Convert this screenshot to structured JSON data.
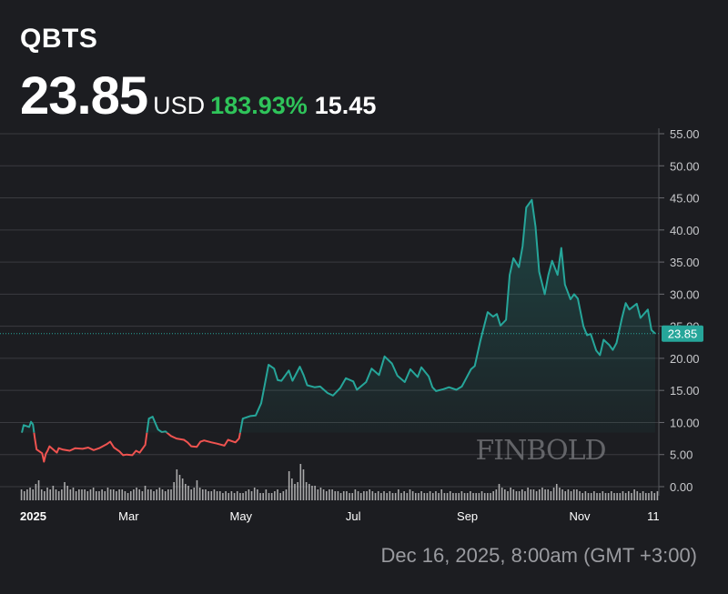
{
  "header": {
    "ticker": "QBTS",
    "price": "23.85",
    "currency": "USD",
    "change_percent": "183.93%",
    "change_value": "15.45"
  },
  "colors": {
    "background": "#1c1d21",
    "up_line": "#26a69a",
    "down_line": "#ef5350",
    "change_positive": "#2fc45a",
    "price_badge": "#26a69a",
    "volume": "#d8d8d8"
  },
  "watermark": "FINBOLD",
  "footer": {
    "timestamp": "Dec 16, 2025, 8:00am (GMT +3:00)"
  },
  "chart_data": {
    "type": "line",
    "title": "",
    "xlabel": "",
    "ylabel": "",
    "ylim": [
      0,
      55
    ],
    "y_ticks": [
      "0.00",
      "5.00",
      "10.00",
      "15.00",
      "20.00",
      "25.00",
      "30.00",
      "35.00",
      "40.00",
      "45.00",
      "50.00",
      "55.00"
    ],
    "x_ticks": [
      "2025",
      "Mar",
      "May",
      "Jul",
      "Sep",
      "Nov",
      "11"
    ],
    "x_tick_dates": [
      "2025-01-01",
      "2025-03-01",
      "2025-05-01",
      "2025-07-01",
      "2025-09-01",
      "2025-11-01",
      "2025-12-11"
    ],
    "last_price_label": "23.85",
    "grid": true,
    "baseline": 8.4,
    "series": [
      {
        "points": [
          [
            "2025-01-02",
            8.4
          ],
          [
            "2025-01-03",
            9.6
          ],
          [
            "2025-01-06",
            9.3
          ],
          [
            "2025-01-07",
            10.1
          ],
          [
            "2025-01-08",
            9.7
          ],
          [
            "2025-01-09",
            7.6
          ],
          [
            "2025-01-10",
            5.8
          ],
          [
            "2025-01-13",
            5.2
          ],
          [
            "2025-01-14",
            3.9
          ],
          [
            "2025-01-15",
            5.1
          ],
          [
            "2025-01-16",
            5.6
          ],
          [
            "2025-01-17",
            6.3
          ],
          [
            "2025-01-21",
            5.3
          ],
          [
            "2025-01-22",
            6.0
          ],
          [
            "2025-01-24",
            5.8
          ],
          [
            "2025-01-28",
            5.6
          ],
          [
            "2025-01-31",
            6.0
          ],
          [
            "2025-02-04",
            5.9
          ],
          [
            "2025-02-07",
            6.1
          ],
          [
            "2025-02-10",
            5.7
          ],
          [
            "2025-02-13",
            6.0
          ],
          [
            "2025-02-17",
            6.6
          ],
          [
            "2025-02-19",
            7.0
          ],
          [
            "2025-02-21",
            6.1
          ],
          [
            "2025-02-24",
            5.5
          ],
          [
            "2025-02-26",
            4.9
          ],
          [
            "2025-02-28",
            5.0
          ],
          [
            "2025-03-03",
            4.9
          ],
          [
            "2025-03-05",
            5.6
          ],
          [
            "2025-03-07",
            5.3
          ],
          [
            "2025-03-10",
            6.5
          ],
          [
            "2025-03-12",
            10.6
          ],
          [
            "2025-03-14",
            10.9
          ],
          [
            "2025-03-17",
            8.9
          ],
          [
            "2025-03-19",
            8.5
          ],
          [
            "2025-03-21",
            8.6
          ],
          [
            "2025-03-24",
            7.9
          ],
          [
            "2025-03-27",
            7.5
          ],
          [
            "2025-03-31",
            7.3
          ],
          [
            "2025-04-02",
            6.9
          ],
          [
            "2025-04-04",
            6.3
          ],
          [
            "2025-04-07",
            6.2
          ],
          [
            "2025-04-09",
            7.0
          ],
          [
            "2025-04-11",
            7.2
          ],
          [
            "2025-04-15",
            6.9
          ],
          [
            "2025-04-18",
            6.7
          ],
          [
            "2025-04-22",
            6.4
          ],
          [
            "2025-04-24",
            7.3
          ],
          [
            "2025-04-28",
            6.9
          ],
          [
            "2025-04-30",
            7.5
          ],
          [
            "2025-05-02",
            10.6
          ],
          [
            "2025-05-06",
            11.0
          ],
          [
            "2025-05-09",
            11.1
          ],
          [
            "2025-05-12",
            13.0
          ],
          [
            "2025-05-14",
            16.0
          ],
          [
            "2025-05-16",
            19.0
          ],
          [
            "2025-05-19",
            18.4
          ],
          [
            "2025-05-21",
            16.6
          ],
          [
            "2025-05-23",
            16.5
          ],
          [
            "2025-05-27",
            18.1
          ],
          [
            "2025-05-29",
            16.5
          ],
          [
            "2025-06-02",
            18.7
          ],
          [
            "2025-06-04",
            17.4
          ],
          [
            "2025-06-06",
            15.8
          ],
          [
            "2025-06-10",
            15.5
          ],
          [
            "2025-06-13",
            15.6
          ],
          [
            "2025-06-17",
            14.6
          ],
          [
            "2025-06-20",
            14.2
          ],
          [
            "2025-06-24",
            15.4
          ],
          [
            "2025-06-27",
            16.9
          ],
          [
            "2025-07-01",
            16.4
          ],
          [
            "2025-07-03",
            15.1
          ],
          [
            "2025-07-08",
            16.3
          ],
          [
            "2025-07-11",
            18.4
          ],
          [
            "2025-07-15",
            17.4
          ],
          [
            "2025-07-18",
            20.3
          ],
          [
            "2025-07-22",
            19.2
          ],
          [
            "2025-07-25",
            17.3
          ],
          [
            "2025-07-29",
            16.3
          ],
          [
            "2025-08-01",
            18.3
          ],
          [
            "2025-08-05",
            17.1
          ],
          [
            "2025-08-07",
            18.6
          ],
          [
            "2025-08-11",
            17.2
          ],
          [
            "2025-08-13",
            15.5
          ],
          [
            "2025-08-15",
            14.9
          ],
          [
            "2025-08-19",
            15.2
          ],
          [
            "2025-08-22",
            15.5
          ],
          [
            "2025-08-26",
            15.1
          ],
          [
            "2025-08-29",
            15.6
          ],
          [
            "2025-09-03",
            18.3
          ],
          [
            "2025-09-05",
            18.8
          ],
          [
            "2025-09-08",
            22.7
          ],
          [
            "2025-09-10",
            24.9
          ],
          [
            "2025-09-12",
            27.2
          ],
          [
            "2025-09-15",
            26.5
          ],
          [
            "2025-09-17",
            26.9
          ],
          [
            "2025-09-19",
            25.1
          ],
          [
            "2025-09-22",
            26.0
          ],
          [
            "2025-09-24",
            33.0
          ],
          [
            "2025-09-26",
            35.6
          ],
          [
            "2025-09-29",
            34.2
          ],
          [
            "2025-10-01",
            37.5
          ],
          [
            "2025-10-03",
            43.5
          ],
          [
            "2025-10-06",
            44.7
          ],
          [
            "2025-10-08",
            40.5
          ],
          [
            "2025-10-10",
            33.5
          ],
          [
            "2025-10-13",
            30.0
          ],
          [
            "2025-10-15",
            33.0
          ],
          [
            "2025-10-17",
            35.2
          ],
          [
            "2025-10-20",
            33.0
          ],
          [
            "2025-10-22",
            37.2
          ],
          [
            "2025-10-24",
            31.5
          ],
          [
            "2025-10-27",
            29.2
          ],
          [
            "2025-10-29",
            30.0
          ],
          [
            "2025-10-31",
            29.3
          ],
          [
            "2025-11-03",
            25.0
          ],
          [
            "2025-11-05",
            23.6
          ],
          [
            "2025-11-07",
            23.8
          ],
          [
            "2025-11-10",
            21.2
          ],
          [
            "2025-11-12",
            20.5
          ],
          [
            "2025-11-14",
            22.9
          ],
          [
            "2025-11-17",
            22.1
          ],
          [
            "2025-11-19",
            21.3
          ],
          [
            "2025-11-21",
            22.4
          ],
          [
            "2025-11-24",
            26.3
          ],
          [
            "2025-11-26",
            28.6
          ],
          [
            "2025-11-28",
            27.6
          ],
          [
            "2025-12-02",
            28.5
          ],
          [
            "2025-12-04",
            26.3
          ],
          [
            "2025-12-08",
            27.6
          ],
          [
            "2025-12-10",
            24.4
          ],
          [
            "2025-12-12",
            23.85
          ]
        ]
      }
    ],
    "volume_relative": [
      0.3,
      0.25,
      0.3,
      0.35,
      0.3,
      0.45,
      0.55,
      0.3,
      0.25,
      0.35,
      0.3,
      0.4,
      0.3,
      0.25,
      0.3,
      0.5,
      0.4,
      0.3,
      0.35,
      0.25,
      0.3,
      0.3,
      0.3,
      0.25,
      0.3,
      0.35,
      0.25,
      0.25,
      0.3,
      0.25,
      0.35,
      0.3,
      0.3,
      0.25,
      0.3,
      0.3,
      0.25,
      0.2,
      0.25,
      0.3,
      0.35,
      0.3,
      0.25,
      0.4,
      0.3,
      0.3,
      0.25,
      0.3,
      0.35,
      0.3,
      0.25,
      0.3,
      0.3,
      0.5,
      0.85,
      0.7,
      0.6,
      0.45,
      0.4,
      0.3,
      0.35,
      0.55,
      0.35,
      0.3,
      0.3,
      0.25,
      0.25,
      0.3,
      0.25,
      0.25,
      0.2,
      0.25,
      0.2,
      0.25,
      0.2,
      0.25,
      0.2,
      0.2,
      0.25,
      0.3,
      0.25,
      0.35,
      0.3,
      0.2,
      0.2,
      0.3,
      0.2,
      0.2,
      0.25,
      0.3,
      0.2,
      0.25,
      0.3,
      0.8,
      0.6,
      0.45,
      0.5,
      1.0,
      0.85,
      0.5,
      0.45,
      0.4,
      0.4,
      0.3,
      0.35,
      0.3,
      0.25,
      0.3,
      0.3,
      0.25,
      0.25,
      0.2,
      0.25,
      0.25,
      0.2,
      0.2,
      0.3,
      0.25,
      0.2,
      0.25,
      0.25,
      0.3,
      0.25,
      0.2,
      0.25,
      0.2,
      0.25,
      0.2,
      0.25,
      0.2,
      0.2,
      0.3,
      0.2,
      0.25,
      0.2,
      0.3,
      0.25,
      0.2,
      0.2,
      0.25,
      0.2,
      0.2,
      0.25,
      0.2,
      0.25,
      0.2,
      0.3,
      0.2,
      0.2,
      0.25,
      0.2,
      0.2,
      0.2,
      0.25,
      0.2,
      0.2,
      0.25,
      0.2,
      0.2,
      0.2,
      0.25,
      0.2,
      0.2,
      0.2,
      0.25,
      0.3,
      0.45,
      0.35,
      0.3,
      0.25,
      0.35,
      0.3,
      0.25,
      0.25,
      0.3,
      0.25,
      0.35,
      0.3,
      0.3,
      0.25,
      0.3,
      0.35,
      0.3,
      0.3,
      0.25,
      0.35,
      0.45,
      0.35,
      0.3,
      0.25,
      0.3,
      0.25,
      0.3,
      0.3,
      0.25,
      0.2,
      0.25,
      0.2,
      0.2,
      0.25,
      0.2,
      0.2,
      0.25,
      0.2,
      0.2,
      0.25,
      0.2,
      0.2,
      0.2,
      0.25,
      0.2,
      0.25,
      0.2,
      0.3,
      0.25,
      0.2,
      0.25,
      0.2,
      0.2,
      0.25,
      0.2,
      0.25
    ]
  }
}
